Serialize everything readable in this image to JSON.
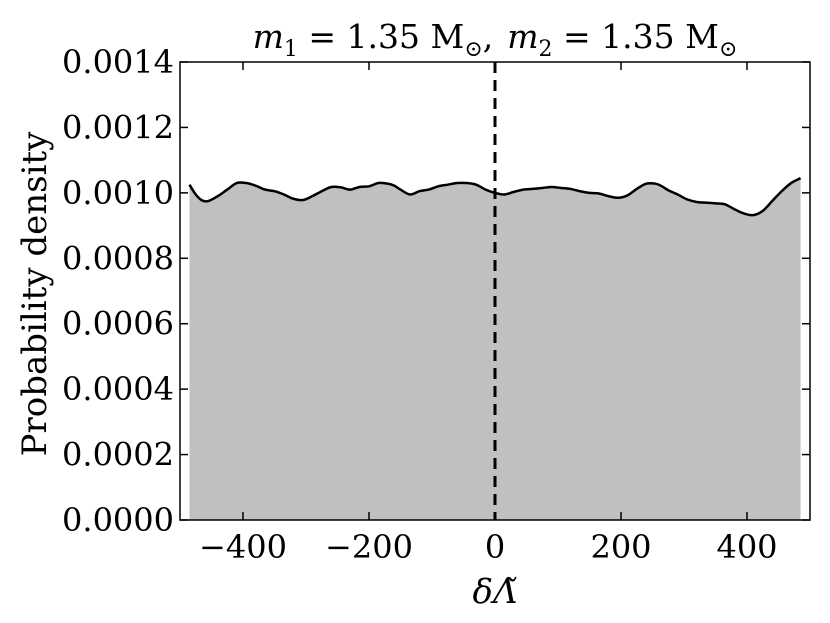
{
  "chart_data": {
    "type": "area",
    "title": {
      "m1_symbol": "m",
      "m1_sub": "1",
      "m1_value": " = 1.35 M",
      "m2_symbol": "m",
      "m2_sub": "2",
      "m2_value": " = 1.35 M",
      "solar_symbol": "⊙",
      "separator": ","
    },
    "xlabel": "δΛ̃",
    "ylabel": "Probability density",
    "xlim": [
      -500,
      500
    ],
    "ylim": [
      0,
      0.0014
    ],
    "xticks": [
      -400,
      -200,
      0,
      200,
      400
    ],
    "xtick_labels": [
      "−400",
      "−200",
      "0",
      "200",
      "400"
    ],
    "yticks": [
      0,
      0.0002,
      0.0004,
      0.0006,
      0.0008,
      0.001,
      0.0012,
      0.0014
    ],
    "ytick_labels": [
      "0.0000",
      "0.0002",
      "0.0004",
      "0.0006",
      "0.0008",
      "0.0010",
      "0.0012",
      "0.0014"
    ],
    "vline_x": 0,
    "fill_color": "#c0c0c0",
    "line_color": "#000000",
    "x": [
      -485,
      -475,
      -465,
      -455,
      -440,
      -425,
      -410,
      -395,
      -380,
      -365,
      -350,
      -335,
      -320,
      -305,
      -290,
      -275,
      -260,
      -245,
      -230,
      -215,
      -200,
      -185,
      -170,
      -160,
      -150,
      -135,
      -120,
      -105,
      -90,
      -75,
      -60,
      -45,
      -30,
      -15,
      0,
      15,
      30,
      45,
      60,
      75,
      90,
      105,
      120,
      135,
      150,
      165,
      180,
      195,
      210,
      225,
      240,
      255,
      265,
      275,
      290,
      305,
      320,
      335,
      350,
      365,
      380,
      395,
      410,
      425,
      440,
      455,
      470,
      485
    ],
    "y": [
      0.001025,
      0.000995,
      0.000977,
      0.000975,
      0.00099,
      0.00101,
      0.00103,
      0.00103,
      0.001022,
      0.00101,
      0.001005,
      0.000995,
      0.000982,
      0.000978,
      0.00099,
      0.001005,
      0.001018,
      0.001017,
      0.00101,
      0.001018,
      0.00102,
      0.00103,
      0.001028,
      0.001022,
      0.00101,
      0.000995,
      0.001005,
      0.00101,
      0.00102,
      0.001025,
      0.00103,
      0.00103,
      0.001025,
      0.00101,
      0.001,
      0.000995,
      0.001003,
      0.00101,
      0.001012,
      0.001015,
      0.001018,
      0.001015,
      0.001012,
      0.001005,
      0.001,
      0.000998,
      0.00099,
      0.000985,
      0.000992,
      0.001012,
      0.001028,
      0.001028,
      0.00102,
      0.001008,
      0.000995,
      0.00098,
      0.000972,
      0.00097,
      0.000968,
      0.000965,
      0.00095,
      0.000937,
      0.000932,
      0.000945,
      0.000975,
      0.001005,
      0.00103,
      0.001045
    ]
  }
}
